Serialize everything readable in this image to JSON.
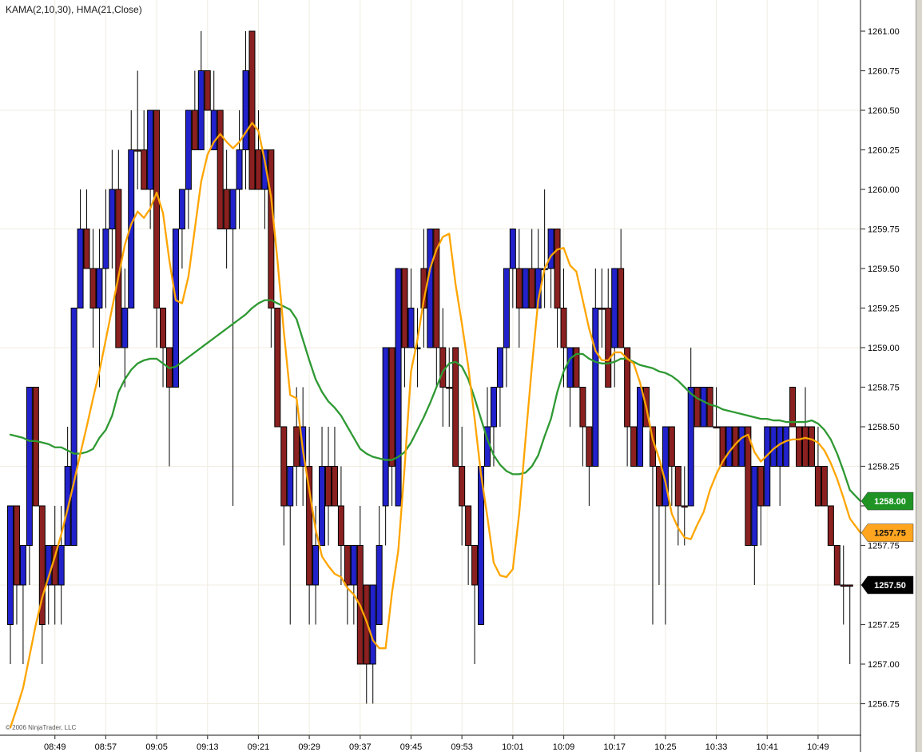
{
  "title": "KAMA(2,10,30), HMA(21,Close)",
  "copyright": "© 2006 NinjaTrader, LLC",
  "colors": {
    "background": "#ffffff",
    "up_bar": "#2222cc",
    "down_bar": "#8b2020",
    "bar_outline": "#000000",
    "kama_line": "#ffa500",
    "hma_line": "#2e9932",
    "grid": "#f0ece0",
    "axis": "#444444",
    "label_text": "#000000",
    "badge_green": "#1f9424",
    "badge_orange": "#ffa520",
    "badge_black": "#000000"
  },
  "chart_data": {
    "type": "candlestick",
    "bar_interval_minutes": 1,
    "start_time": "08:42",
    "x_axis_labels": [
      "08:49",
      "08:57",
      "09:05",
      "09:13",
      "09:21",
      "09:29",
      "09:37",
      "09:45",
      "09:53",
      "10:01",
      "10:09",
      "10:17",
      "10:25",
      "10:33",
      "10:41",
      "10:49"
    ],
    "first_label_bar_index": 7,
    "label_every_n_bars": 8,
    "y_axis": {
      "max": 1261.0,
      "min": 1256.75,
      "tick_step": 0.25,
      "grid_step": 0.75
    },
    "y_tick_labels": [
      "1261.00",
      "1260.75",
      "1260.50",
      "1260.25",
      "1260.00",
      "1259.75",
      "1259.50",
      "1259.25",
      "1259.00",
      "1258.75",
      "1258.50",
      "1258.25",
      "1258.00",
      "1257.75",
      "1257.50",
      "1257.25",
      "1257.00",
      "1256.75"
    ],
    "bars_ohlc_dir": [
      [
        1257.25,
        1258.0,
        1257.0,
        1258.0,
        1
      ],
      [
        1258.0,
        1258.0,
        1257.25,
        1257.5,
        -1
      ],
      [
        1257.5,
        1257.75,
        1257.0,
        1257.75,
        1
      ],
      [
        1257.75,
        1258.75,
        1257.5,
        1258.75,
        1
      ],
      [
        1258.75,
        1258.75,
        1258.0,
        1258.0,
        -1
      ],
      [
        1258.0,
        1258.0,
        1257.0,
        1257.25,
        -1
      ],
      [
        1257.5,
        1257.75,
        1257.25,
        1257.75,
        1
      ],
      [
        1257.75,
        1258.0,
        1257.25,
        1257.5,
        -1
      ],
      [
        1257.5,
        1258.0,
        1257.25,
        1257.75,
        1
      ],
      [
        1257.75,
        1258.5,
        1257.75,
        1258.25,
        1
      ],
      [
        1257.75,
        1259.25,
        1257.75,
        1259.25,
        1
      ],
      [
        1259.25,
        1260.0,
        1259.25,
        1259.75,
        1
      ],
      [
        1259.75,
        1260.0,
        1259.5,
        1259.5,
        -1
      ],
      [
        1259.5,
        1259.75,
        1259.0,
        1259.25,
        -1
      ],
      [
        1259.25,
        1259.75,
        1258.75,
        1259.5,
        1
      ],
      [
        1259.5,
        1260.0,
        1259.25,
        1259.75,
        1
      ],
      [
        1259.75,
        1260.25,
        1259.5,
        1260.0,
        1
      ],
      [
        1260.0,
        1260.25,
        1259.0,
        1259.0,
        -1
      ],
      [
        1259.0,
        1259.5,
        1258.75,
        1259.25,
        1
      ],
      [
        1259.25,
        1260.5,
        1259.25,
        1260.25,
        1
      ],
      [
        1260.25,
        1260.75,
        1260.0,
        1260.25,
        -1
      ],
      [
        1260.25,
        1260.5,
        1260.0,
        1260.0,
        -1
      ],
      [
        1260.0,
        1260.5,
        1259.75,
        1260.5,
        1
      ],
      [
        1260.5,
        1260.5,
        1259.0,
        1259.25,
        -1
      ],
      [
        1259.25,
        1259.25,
        1258.75,
        1259.0,
        -1
      ],
      [
        1259.0,
        1259.0,
        1258.25,
        1258.75,
        -1
      ],
      [
        1258.75,
        1259.75,
        1258.75,
        1259.75,
        1
      ],
      [
        1259.75,
        1260.0,
        1259.5,
        1260.0,
        1
      ],
      [
        1260.0,
        1260.5,
        1259.75,
        1260.5,
        1
      ],
      [
        1260.5,
        1260.75,
        1260.25,
        1260.25,
        -1
      ],
      [
        1260.25,
        1261.0,
        1260.25,
        1260.75,
        1
      ],
      [
        1260.75,
        1260.75,
        1260.5,
        1260.5,
        -1
      ],
      [
        1260.25,
        1260.75,
        1260.25,
        1260.5,
        1
      ],
      [
        1260.5,
        1260.5,
        1259.75,
        1259.75,
        -1
      ],
      [
        1260.0,
        1260.25,
        1259.5,
        1259.75,
        -1
      ],
      [
        1259.75,
        1260.0,
        1258.0,
        1260.0,
        1
      ],
      [
        1260.0,
        1260.5,
        1259.75,
        1260.25,
        1
      ],
      [
        1260.25,
        1261.0,
        1260.0,
        1260.75,
        1
      ],
      [
        1261.0,
        1261.0,
        1260.0,
        1260.0,
        -1
      ],
      [
        1260.25,
        1260.5,
        1260.0,
        1260.0,
        -1
      ],
      [
        1260.0,
        1260.25,
        1259.75,
        1260.25,
        1
      ],
      [
        1260.25,
        1260.25,
        1259.0,
        1259.25,
        -1
      ],
      [
        1259.25,
        1259.25,
        1258.5,
        1258.5,
        -1
      ],
      [
        1258.5,
        1258.5,
        1257.75,
        1258.0,
        -1
      ],
      [
        1258.0,
        1258.25,
        1257.25,
        1258.25,
        1
      ],
      [
        1258.5,
        1258.75,
        1258.0,
        1258.25,
        -1
      ],
      [
        1258.25,
        1258.75,
        1258.0,
        1258.5,
        1
      ],
      [
        1258.25,
        1258.5,
        1257.25,
        1257.5,
        -1
      ],
      [
        1257.5,
        1258.0,
        1257.25,
        1257.75,
        1
      ],
      [
        1257.75,
        1258.5,
        1257.75,
        1258.25,
        1
      ],
      [
        1258.25,
        1258.5,
        1257.75,
        1258.0,
        -1
      ],
      [
        1258.25,
        1258.5,
        1258.0,
        1258.0,
        -1
      ],
      [
        1258.0,
        1258.25,
        1257.5,
        1257.75,
        -1
      ],
      [
        1257.75,
        1257.75,
        1257.25,
        1257.5,
        -1
      ],
      [
        1257.5,
        1257.75,
        1257.25,
        1257.75,
        1
      ],
      [
        1257.75,
        1258.0,
        1257.0,
        1257.0,
        -1
      ],
      [
        1257.5,
        1257.5,
        1256.75,
        1257.0,
        -1
      ],
      [
        1257.0,
        1257.5,
        1256.75,
        1257.5,
        1
      ],
      [
        1257.25,
        1258.0,
        1257.25,
        1257.75,
        1
      ],
      [
        1258.0,
        1259.0,
        1257.75,
        1259.0,
        1
      ],
      [
        1259.0,
        1259.0,
        1258.0,
        1258.25,
        -1
      ],
      [
        1258.0,
        1259.5,
        1258.0,
        1259.5,
        1
      ],
      [
        1259.5,
        1259.5,
        1258.75,
        1259.0,
        -1
      ],
      [
        1259.0,
        1259.5,
        1259.0,
        1259.25,
        1
      ],
      [
        1259.0,
        1259.25,
        1258.75,
        1259.0,
        1
      ],
      [
        1259.5,
        1259.75,
        1259.0,
        1259.25,
        -1
      ],
      [
        1259.0,
        1259.75,
        1259.0,
        1259.75,
        1
      ],
      [
        1259.75,
        1259.75,
        1258.75,
        1259.0,
        -1
      ],
      [
        1259.0,
        1259.25,
        1258.5,
        1258.75,
        -1
      ],
      [
        1258.75,
        1259.0,
        1258.5,
        1258.75,
        -1
      ],
      [
        1259.0,
        1259.0,
        1258.25,
        1258.25,
        -1
      ],
      [
        1258.25,
        1258.5,
        1257.75,
        1258.0,
        -1
      ],
      [
        1258.0,
        1258.0,
        1257.5,
        1257.75,
        -1
      ],
      [
        1257.75,
        1257.75,
        1257.0,
        1257.5,
        -1
      ],
      [
        1257.25,
        1258.25,
        1257.25,
        1258.25,
        1
      ],
      [
        1258.25,
        1258.75,
        1258.25,
        1258.5,
        1
      ],
      [
        1258.5,
        1258.75,
        1258.25,
        1258.75,
        1
      ],
      [
        1258.75,
        1259.0,
        1258.5,
        1259.0,
        1
      ],
      [
        1259.0,
        1259.5,
        1258.75,
        1259.5,
        1
      ],
      [
        1259.5,
        1259.75,
        1259.25,
        1259.75,
        1
      ],
      [
        1259.5,
        1259.75,
        1259.0,
        1259.25,
        -1
      ],
      [
        1259.25,
        1259.5,
        1259.25,
        1259.5,
        1
      ],
      [
        1259.5,
        1259.75,
        1259.25,
        1259.25,
        -1
      ],
      [
        1259.25,
        1259.75,
        1259.25,
        1259.5,
        1
      ],
      [
        1259.5,
        1260.0,
        1259.25,
        1259.5,
        1
      ],
      [
        1259.5,
        1259.75,
        1259.25,
        1259.75,
        1
      ],
      [
        1259.75,
        1259.75,
        1259.0,
        1259.25,
        -1
      ],
      [
        1259.25,
        1259.5,
        1258.75,
        1259.0,
        -1
      ],
      [
        1258.75,
        1259.0,
        1258.5,
        1259.0,
        1
      ],
      [
        1259.0,
        1259.0,
        1258.75,
        1258.75,
        -1
      ],
      [
        1258.75,
        1258.75,
        1258.25,
        1258.5,
        -1
      ],
      [
        1258.5,
        1258.5,
        1258.0,
        1258.25,
        -1
      ],
      [
        1258.25,
        1259.5,
        1258.25,
        1259.25,
        1
      ],
      [
        1259.25,
        1259.5,
        1259.0,
        1259.25,
        -1
      ],
      [
        1259.25,
        1259.5,
        1258.75,
        1258.75,
        -1
      ],
      [
        1259.0,
        1259.5,
        1258.75,
        1259.5,
        1
      ],
      [
        1259.5,
        1259.75,
        1259.0,
        1259.0,
        -1
      ],
      [
        1259.0,
        1259.0,
        1258.25,
        1258.5,
        -1
      ],
      [
        1258.5,
        1258.5,
        1258.25,
        1258.25,
        -1
      ],
      [
        1258.25,
        1258.75,
        1258.25,
        1258.75,
        1
      ],
      [
        1258.75,
        1258.75,
        1258.5,
        1258.5,
        -1
      ],
      [
        1258.5,
        1258.5,
        1257.25,
        1258.25,
        -1
      ],
      [
        1258.25,
        1258.25,
        1257.5,
        1258.0,
        -1
      ],
      [
        1258.0,
        1258.5,
        1257.25,
        1258.5,
        1
      ],
      [
        1258.5,
        1258.5,
        1258.0,
        1258.25,
        -1
      ],
      [
        1258.25,
        1258.25,
        1257.75,
        1258.0,
        -1
      ],
      [
        1258.0,
        1258.25,
        1257.75,
        1258.0,
        -1
      ],
      [
        1258.0,
        1259.0,
        1258.0,
        1258.75,
        1
      ],
      [
        1258.75,
        1258.75,
        1258.5,
        1258.5,
        -1
      ],
      [
        1258.5,
        1258.75,
        1258.5,
        1258.75,
        1
      ],
      [
        1258.75,
        1258.75,
        1258.5,
        1258.5,
        -1
      ],
      [
        1258.5,
        1258.75,
        1258.5,
        1258.5,
        -1
      ],
      [
        1258.5,
        1258.5,
        1258.25,
        1258.25,
        -1
      ],
      [
        1258.25,
        1258.5,
        1258.25,
        1258.5,
        1
      ],
      [
        1258.5,
        1258.5,
        1258.25,
        1258.25,
        -1
      ],
      [
        1258.25,
        1258.5,
        1258.25,
        1258.5,
        1
      ],
      [
        1258.5,
        1258.5,
        1257.75,
        1257.75,
        -1
      ],
      [
        1257.75,
        1258.25,
        1257.5,
        1258.25,
        1
      ],
      [
        1258.25,
        1258.25,
        1257.75,
        1258.0,
        -1
      ],
      [
        1258.0,
        1258.5,
        1258.0,
        1258.5,
        1
      ],
      [
        1258.25,
        1258.5,
        1258.25,
        1258.5,
        1
      ],
      [
        1258.25,
        1258.5,
        1258.0,
        1258.5,
        1
      ],
      [
        1258.25,
        1258.5,
        1258.25,
        1258.5,
        1
      ],
      [
        1258.75,
        1258.75,
        1258.5,
        1258.5,
        -1
      ],
      [
        1258.5,
        1258.5,
        1258.25,
        1258.25,
        -1
      ],
      [
        1258.5,
        1258.75,
        1258.25,
        1258.25,
        -1
      ],
      [
        1258.5,
        1258.5,
        1258.25,
        1258.25,
        -1
      ],
      [
        1258.25,
        1258.5,
        1258.0,
        1258.0,
        -1
      ],
      [
        1258.25,
        1258.25,
        1258.0,
        1258.0,
        -1
      ],
      [
        1258.0,
        1258.0,
        1257.75,
        1257.75,
        -1
      ],
      [
        1257.75,
        1257.75,
        1257.5,
        1257.5,
        -1
      ],
      [
        1257.5,
        1257.75,
        1257.25,
        1257.5,
        -1
      ],
      [
        1257.5,
        1257.5,
        1257.0,
        1257.5,
        -1
      ]
    ],
    "series": [
      {
        "name": "KAMA(2,10,30)",
        "color_key": "kama_line",
        "badge": "1257.75",
        "values": [
          1256.6,
          1256.72,
          1256.85,
          1257.05,
          1257.25,
          1257.42,
          1257.55,
          1257.68,
          1257.82,
          1257.98,
          1258.15,
          1258.33,
          1258.5,
          1258.68,
          1258.85,
          1259.05,
          1259.25,
          1259.45,
          1259.65,
          1259.78,
          1259.86,
          1259.82,
          1259.88,
          1259.98,
          1259.85,
          1259.55,
          1259.3,
          1259.28,
          1259.45,
          1259.75,
          1260.05,
          1260.22,
          1260.3,
          1260.35,
          1260.3,
          1260.26,
          1260.3,
          1260.36,
          1260.42,
          1260.37,
          1260.18,
          1259.95,
          1259.55,
          1259.1,
          1258.7,
          1258.68,
          1258.35,
          1258.1,
          1257.85,
          1257.68,
          1257.62,
          1257.57,
          1257.55,
          1257.48,
          1257.44,
          1257.37,
          1257.27,
          1257.15,
          1257.1,
          1257.1,
          1257.45,
          1257.72,
          1258.25,
          1258.85,
          1259.05,
          1259.3,
          1259.5,
          1259.62,
          1259.7,
          1259.72,
          1259.4,
          1259.15,
          1258.88,
          1258.55,
          1258.2,
          1257.93,
          1257.64,
          1257.56,
          1257.55,
          1257.6,
          1257.95,
          1258.42,
          1258.88,
          1259.3,
          1259.5,
          1259.58,
          1259.62,
          1259.63,
          1259.52,
          1259.48,
          1259.3,
          1259.12,
          1258.98,
          1258.92,
          1258.92,
          1258.97,
          1258.97,
          1258.93,
          1258.9,
          1258.78,
          1258.62,
          1258.42,
          1258.3,
          1258.15,
          1257.95,
          1257.86,
          1257.8,
          1257.79,
          1257.88,
          1257.96,
          1258.1,
          1258.2,
          1258.28,
          1258.34,
          1258.39,
          1258.43,
          1258.45,
          1258.34,
          1258.28,
          1258.32,
          1258.36,
          1258.39,
          1258.41,
          1258.42,
          1258.42,
          1258.43,
          1258.42,
          1258.4,
          1258.35,
          1258.27,
          1258.17,
          1258.05,
          1257.92
        ],
        "edge_value": 1257.83
      },
      {
        "name": "HMA(21,Close)",
        "color_key": "hma_line",
        "badge": "1258.00",
        "values": [
          1258.45,
          1258.44,
          1258.43,
          1258.41,
          1258.41,
          1258.4,
          1258.39,
          1258.37,
          1258.37,
          1258.35,
          1258.33,
          1258.33,
          1258.34,
          1258.36,
          1258.43,
          1258.48,
          1258.57,
          1258.72,
          1258.8,
          1258.86,
          1258.9,
          1258.92,
          1258.93,
          1258.93,
          1258.9,
          1258.87,
          1258.88,
          1258.91,
          1258.94,
          1258.97,
          1259.0,
          1259.03,
          1259.06,
          1259.09,
          1259.12,
          1259.15,
          1259.18,
          1259.21,
          1259.25,
          1259.28,
          1259.3,
          1259.3,
          1259.28,
          1259.26,
          1259.24,
          1259.18,
          1259.05,
          1258.92,
          1258.8,
          1258.72,
          1258.66,
          1258.62,
          1258.57,
          1258.5,
          1258.43,
          1258.36,
          1258.33,
          1258.31,
          1258.3,
          1258.29,
          1258.29,
          1258.31,
          1258.34,
          1258.4,
          1258.48,
          1258.56,
          1258.65,
          1258.75,
          1258.85,
          1258.9,
          1258.91,
          1258.88,
          1258.8,
          1258.68,
          1258.55,
          1258.42,
          1258.32,
          1258.26,
          1258.22,
          1258.2,
          1258.2,
          1258.21,
          1258.25,
          1258.32,
          1258.44,
          1258.55,
          1258.72,
          1258.85,
          1258.93,
          1258.96,
          1258.96,
          1258.93,
          1258.91,
          1258.9,
          1258.9,
          1258.91,
          1258.93,
          1258.93,
          1258.91,
          1258.89,
          1258.88,
          1258.87,
          1258.85,
          1258.84,
          1258.82,
          1258.79,
          1258.75,
          1258.71,
          1258.68,
          1258.66,
          1258.64,
          1258.63,
          1258.61,
          1258.6,
          1258.59,
          1258.58,
          1258.57,
          1258.56,
          1258.55,
          1258.55,
          1258.54,
          1258.54,
          1258.53,
          1258.53,
          1258.53,
          1258.53,
          1258.54,
          1258.52,
          1258.48,
          1258.42,
          1258.33,
          1258.22,
          1258.1
        ],
        "edge_value": 1258.03
      }
    ],
    "last_price_marker": {
      "label": "1257.50",
      "value": 1257.5,
      "color_key": "badge_black"
    },
    "series_badges": [
      {
        "label": "1258.00",
        "color_key": "badge_green",
        "text_color": "#ffffff"
      },
      {
        "label": "1257.75",
        "color_key": "badge_orange",
        "text_color": "#111111"
      }
    ]
  }
}
